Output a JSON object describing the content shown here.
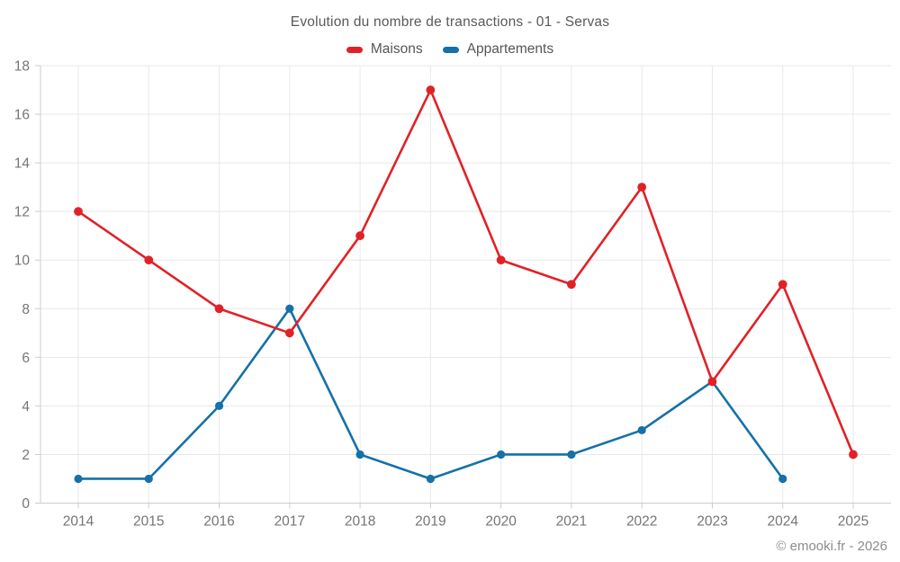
{
  "title": "Evolution du nombre de transactions - 01 - Servas",
  "footer": "© emooki.fr - 2026",
  "legend": {
    "items": [
      {
        "label": "Maisons",
        "color": "#e02227"
      },
      {
        "label": "Appartements",
        "color": "#1571a8"
      }
    ]
  },
  "colors": {
    "maisons": "#e02227",
    "appartements": "#1571a8",
    "grid": "#e8e8e8",
    "axis": "#cccccc",
    "tick_label": "#757575",
    "title_text": "#595959",
    "footer_text": "#8c8c8c",
    "background": "#ffffff"
  },
  "chart_data": {
    "type": "line",
    "title": "Evolution du nombre de transactions - 01 - Servas",
    "x": [
      2014,
      2015,
      2016,
      2017,
      2018,
      2019,
      2020,
      2021,
      2022,
      2023,
      2024,
      2025
    ],
    "series": [
      {
        "name": "Maisons",
        "color": "#e02227",
        "values": [
          12,
          10,
          8,
          7,
          11,
          17,
          10,
          9,
          13,
          5,
          9,
          2
        ]
      },
      {
        "name": "Appartements",
        "color": "#1571a8",
        "values": [
          1,
          1,
          4,
          8,
          2,
          1,
          2,
          2,
          3,
          5,
          1,
          null
        ]
      }
    ],
    "xlabel": "",
    "ylabel": "",
    "ylim": [
      0,
      18
    ],
    "yticks": [
      0,
      2,
      4,
      6,
      8,
      10,
      12,
      14,
      16,
      18
    ],
    "grid": true,
    "legend_position": "top",
    "marker": "circle"
  }
}
